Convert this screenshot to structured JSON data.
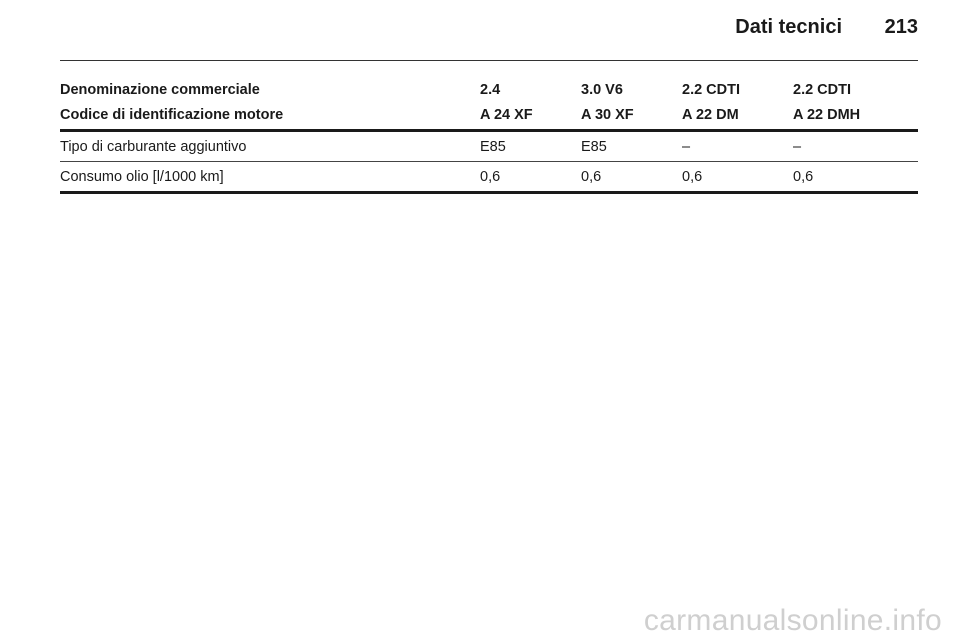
{
  "header": {
    "title": "Dati tecnici",
    "page_number": "213"
  },
  "table": {
    "header_rows": [
      {
        "label": "Denominazione commerciale",
        "cells": [
          "2.4",
          "3.0 V6",
          "2.2 CDTI",
          "2.2 CDTI"
        ]
      },
      {
        "label": "Codice di identificazione motore",
        "cells": [
          "A 24 XF",
          "A 30 XF",
          "A 22 DM",
          "A 22 DMH"
        ]
      }
    ],
    "body_rows": [
      {
        "label": "Tipo di carburante aggiuntivo",
        "cells": [
          "E85",
          "E85",
          "–",
          "–"
        ]
      },
      {
        "label": "Consumo olio [l/1000 km]",
        "cells": [
          "0,6",
          "0,6",
          "0,6",
          "0,6"
        ]
      }
    ]
  },
  "watermark": "carmanualsonline.info"
}
